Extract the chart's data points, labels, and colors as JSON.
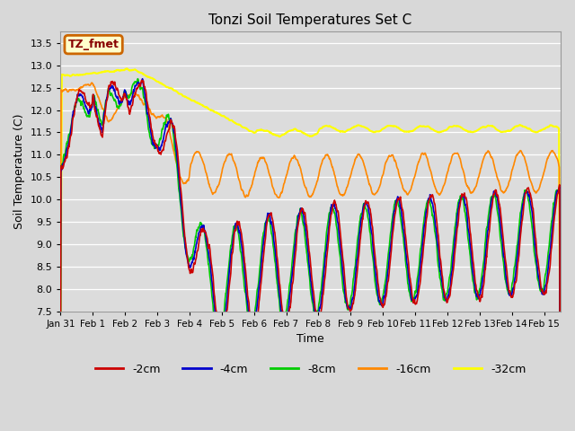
{
  "title": "Tonzi Soil Temperatures Set C",
  "xlabel": "Time",
  "ylabel": "Soil Temperature (C)",
  "ylim": [
    7.5,
    13.75
  ],
  "xlim_days": 15.5,
  "background_color": "#dcdcdc",
  "annotation_text": "TZ_fmet",
  "annotation_bg": "#ffffcc",
  "annotation_border": "#cc6600",
  "annotation_text_color": "#880000",
  "series_colors": {
    "-2cm": "#cc0000",
    "-4cm": "#0000cc",
    "-8cm": "#00cc00",
    "-16cm": "#ff8800",
    "-32cm": "#ffff00"
  },
  "series_linewidths": {
    "-2cm": 1.2,
    "-4cm": 1.2,
    "-8cm": 1.2,
    "-16cm": 1.2,
    "-32cm": 1.5
  },
  "xtick_labels": [
    "Jan 31",
    "Feb 1",
    "Feb 2",
    "Feb 3",
    "Feb 4",
    "Feb 5",
    "Feb 6",
    "Feb 7",
    "Feb 8",
    "Feb 9",
    "Feb 10",
    "Feb 11",
    "Feb 12",
    "Feb 13",
    "Feb 14",
    "Feb 15"
  ],
  "xtick_positions": [
    0,
    1,
    2,
    3,
    4,
    5,
    6,
    7,
    8,
    9,
    10,
    11,
    12,
    13,
    14,
    15
  ],
  "ytick_values": [
    7.5,
    8.0,
    8.5,
    9.0,
    9.5,
    10.0,
    10.5,
    11.0,
    11.5,
    12.0,
    12.5,
    13.0,
    13.5
  ],
  "figsize": [
    6.4,
    4.8
  ],
  "dpi": 100
}
